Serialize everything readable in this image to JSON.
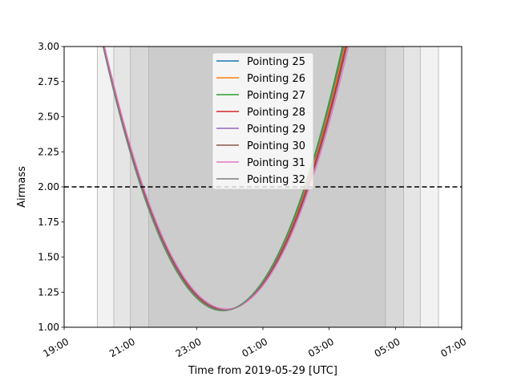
{
  "chart_data": {
    "type": "line",
    "xlabel": "Time from 2019-05-29 [UTC]",
    "ylabel": "Airmass",
    "xlim_hours": [
      19,
      31
    ],
    "ylim": [
      1.0,
      3.0
    ],
    "x_ticks": [
      {
        "hour": 19,
        "label": "19:00"
      },
      {
        "hour": 21,
        "label": "21:00"
      },
      {
        "hour": 23,
        "label": "23:00"
      },
      {
        "hour": 25,
        "label": "01:00"
      },
      {
        "hour": 27,
        "label": "03:00"
      },
      {
        "hour": 29,
        "label": "05:00"
      },
      {
        "hour": 31,
        "label": "07:00"
      }
    ],
    "y_ticks": [
      "1.00",
      "1.25",
      "1.50",
      "1.75",
      "2.00",
      "2.25",
      "2.50",
      "2.75",
      "3.00"
    ],
    "threshold": {
      "y": 2.0,
      "style": "dashed",
      "color": "#000000"
    },
    "twilight_bands": [
      {
        "from": 20.0,
        "to": 30.3,
        "shade": "#f2f2f2"
      },
      {
        "from": 20.5,
        "to": 29.75,
        "shade": "#e5e5e5"
      },
      {
        "from": 21.0,
        "to": 29.25,
        "shade": "#d8d8d8"
      },
      {
        "from": 21.55,
        "to": 28.7,
        "shade": "#cccccc"
      }
    ],
    "band_edges": [
      20.0,
      20.5,
      21.0,
      21.55,
      28.7,
      29.25,
      29.75,
      30.3
    ],
    "series": [
      {
        "name": "Pointing 25",
        "color": "#1f77b4",
        "transit_hour": 23.8,
        "min_airmass": 1.12,
        "halfwidth_hours": 3.62
      },
      {
        "name": "Pointing 26",
        "color": "#ff7f0e",
        "transit_hour": 23.83,
        "min_airmass": 1.122,
        "halfwidth_hours": 3.64
      },
      {
        "name": "Pointing 27",
        "color": "#2ca02c",
        "transit_hour": 23.79,
        "min_airmass": 1.118,
        "halfwidth_hours": 3.61
      },
      {
        "name": "Pointing 28",
        "color": "#d62728",
        "transit_hour": 23.85,
        "min_airmass": 1.124,
        "halfwidth_hours": 3.65
      },
      {
        "name": "Pointing 29",
        "color": "#9467bd",
        "transit_hour": 23.87,
        "min_airmass": 1.126,
        "halfwidth_hours": 3.66
      },
      {
        "name": "Pointing 30",
        "color": "#8c564b",
        "transit_hour": 23.86,
        "min_airmass": 1.125,
        "halfwidth_hours": 3.665
      },
      {
        "name": "Pointing 31",
        "color": "#e377c2",
        "transit_hour": 23.9,
        "min_airmass": 1.13,
        "halfwidth_hours": 3.68
      },
      {
        "name": "Pointing 32",
        "color": "#7f7f7f",
        "transit_hour": 23.81,
        "min_airmass": 1.12,
        "halfwidth_hours": 3.63
      }
    ],
    "legend_placement": "top-center",
    "grid": false
  }
}
